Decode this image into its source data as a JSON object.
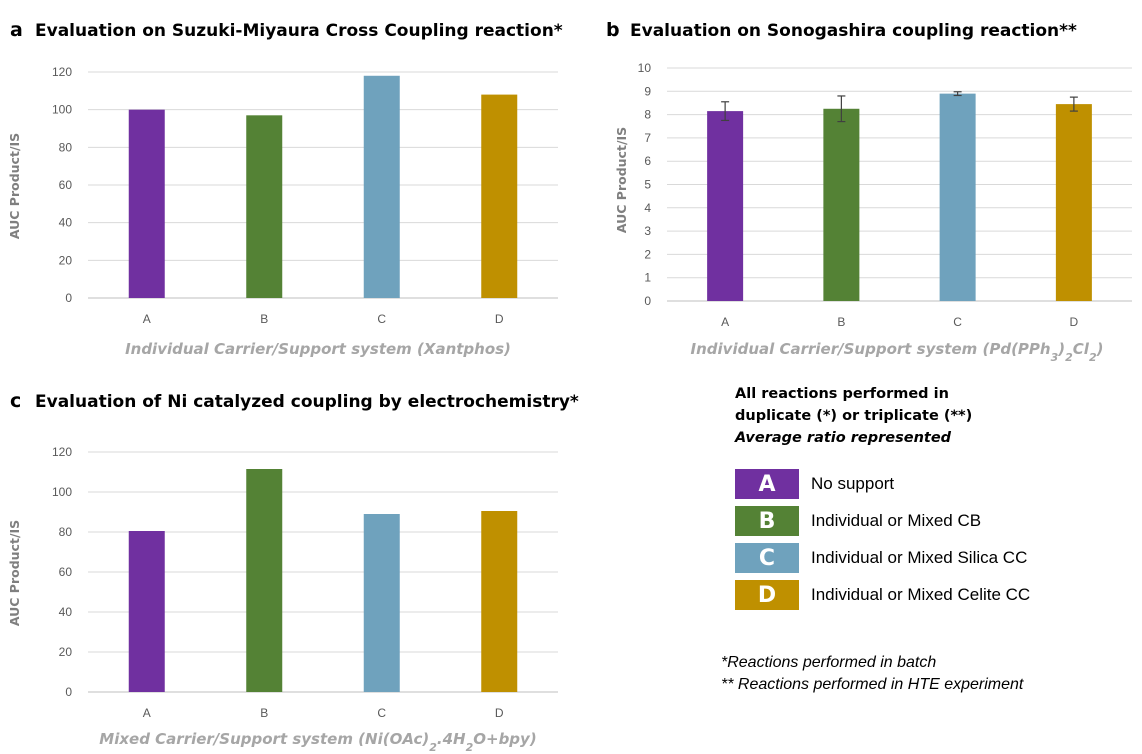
{
  "panels": {
    "a": {
      "letter": "a",
      "title": "Evaluation on Suzuki-Miyaura Cross Coupling reaction*"
    },
    "b": {
      "letter": "b",
      "title": "Evaluation on Sonogashira coupling reaction**"
    },
    "c": {
      "letter": "c",
      "title": "Evaluation of Ni catalyzed coupling by electrochemistry*"
    }
  },
  "colors": {
    "A": "#7030a0",
    "B": "#548235",
    "C": "#6fa2bd",
    "D": "#bf9000"
  },
  "chart_data": [
    {
      "id": "a",
      "type": "bar",
      "title": "Evaluation on Suzuki-Miyaura Cross Coupling reaction*",
      "categories": [
        "A",
        "B",
        "C",
        "D"
      ],
      "values": [
        100,
        97,
        118,
        108
      ],
      "ylabel": "AUC Product/IS",
      "xlabel": "Individual Carrier/Support system (Xantphos)",
      "ylim": [
        0,
        120
      ],
      "yticks": [
        0,
        20,
        40,
        60,
        80,
        100,
        120
      ],
      "grid": true
    },
    {
      "id": "b",
      "type": "bar",
      "title": "Evaluation on Sonogashira coupling reaction**",
      "categories": [
        "A",
        "B",
        "C",
        "D"
      ],
      "values": [
        8.15,
        8.25,
        8.9,
        8.45
      ],
      "errors": [
        0.4,
        0.55,
        0.08,
        0.3
      ],
      "ylabel": "AUC Product/IS",
      "xlabel": "Individual Carrier/Support system (Pd(PPh3)2Cl2)",
      "ylim": [
        0,
        10
      ],
      "yticks": [
        0,
        1,
        2,
        3,
        4,
        5,
        6,
        7,
        8,
        9,
        10
      ],
      "grid": true
    },
    {
      "id": "c",
      "type": "bar",
      "title": "Evaluation of Ni catalyzed coupling by electrochemistry*",
      "categories": [
        "A",
        "B",
        "C",
        "D"
      ],
      "values": [
        80.5,
        111.5,
        89,
        90.5
      ],
      "ylabel": "AUC Product/IS",
      "xlabel": "Mixed Carrier/Support system (Ni(OAc)2.4H2O+bpy)",
      "ylim": [
        0,
        120
      ],
      "yticks": [
        0,
        20,
        40,
        60,
        80,
        100,
        120
      ],
      "grid": true
    }
  ],
  "legend": {
    "note_line1": "All reactions performed in",
    "note_line2": "duplicate (*) or triplicate (**)",
    "note_line3": "Average ratio represented",
    "items": [
      {
        "letter": "A",
        "label": "No support",
        "color": "#7030a0"
      },
      {
        "letter": "B",
        "label": "Individual or Mixed CB",
        "color": "#548235"
      },
      {
        "letter": "C",
        "label": "Individual or Mixed Silica CC",
        "color": "#6fa2bd"
      },
      {
        "letter": "D",
        "label": "Individual or Mixed Celite CC",
        "color": "#bf9000"
      }
    ],
    "footnote1": "*Reactions performed in batch",
    "footnote2": "** Reactions performed in HTE experiment"
  }
}
